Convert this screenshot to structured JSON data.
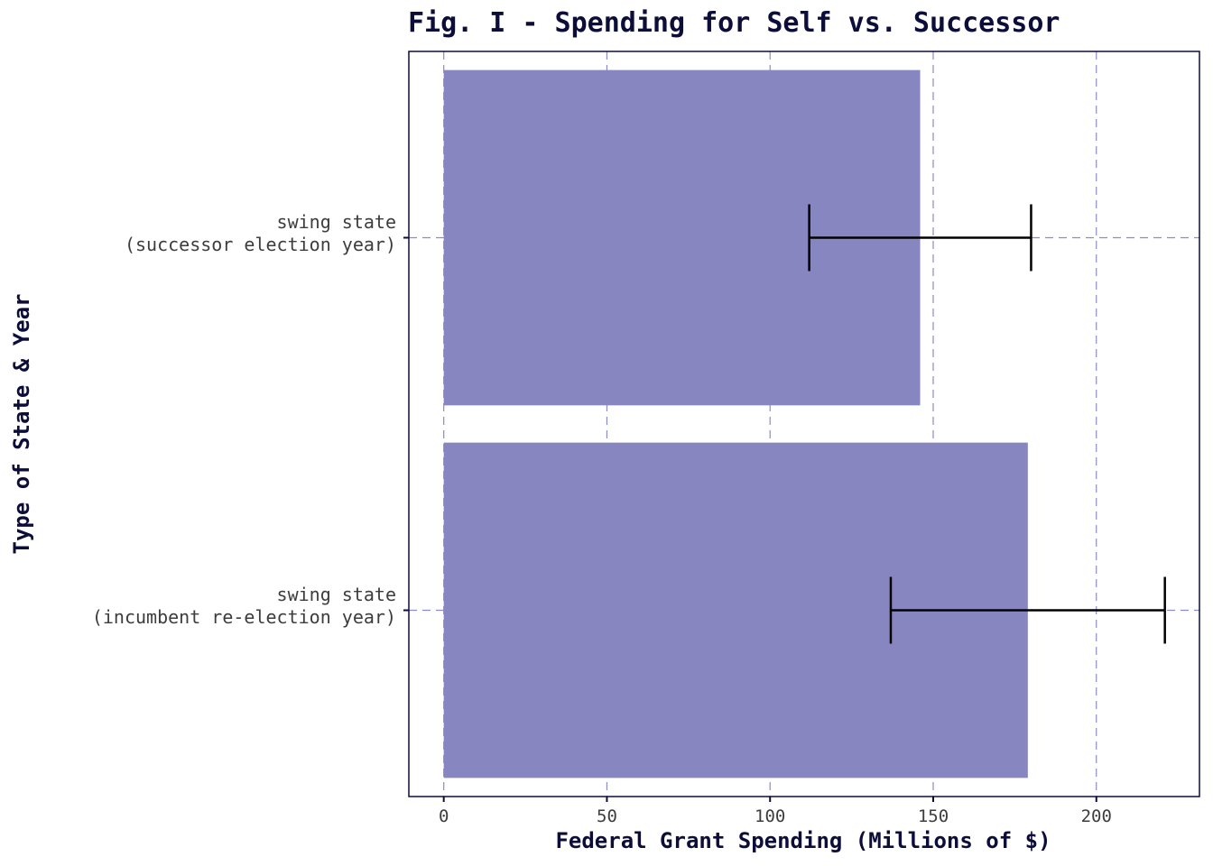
{
  "chart_data": {
    "type": "bar",
    "orientation": "horizontal",
    "title": "Fig. I - Spending for Self vs. Successor",
    "xlabel": "Federal Grant Spending (Millions of $)",
    "ylabel": "Type of State & Year",
    "categories": [
      [
        "swing state",
        "(successor election year)"
      ],
      [
        "swing state",
        "(incumbent re-election year)"
      ]
    ],
    "values": [
      146,
      179
    ],
    "error_low": [
      112,
      137
    ],
    "error_high": [
      180,
      221
    ],
    "xlim": [
      -10.7,
      231.6
    ],
    "xticks": [
      0,
      50,
      100,
      150,
      200
    ],
    "grid": true,
    "bar_color": "#8886c1",
    "grid_color": "#8b8bc8",
    "text_color": "#0d0d3a"
  }
}
